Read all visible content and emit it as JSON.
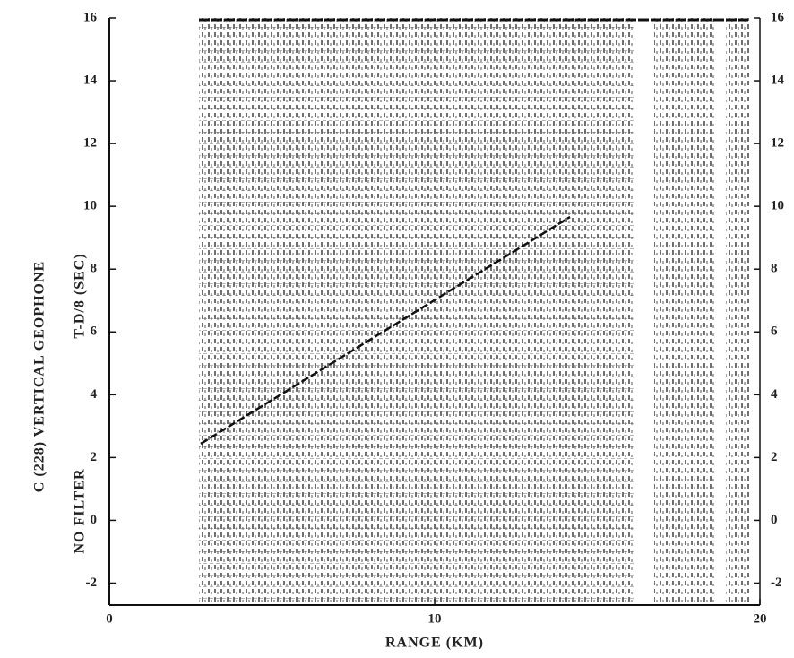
{
  "chart_data": {
    "type": "record-section",
    "xlabel": "RANGE (KM)",
    "ylabel": "T-D/8 (SEC)",
    "annotations": [
      "C (228) VERTICAL GEOPHONE",
      "NO FILTER"
    ],
    "xlim": [
      0,
      20
    ],
    "xticks": [
      0,
      10,
      20
    ],
    "ylim": [
      -2.7,
      16
    ],
    "yticks": [
      -2,
      0,
      2,
      4,
      6,
      8,
      10,
      12,
      14,
      16
    ],
    "color": "#111111"
  }
}
